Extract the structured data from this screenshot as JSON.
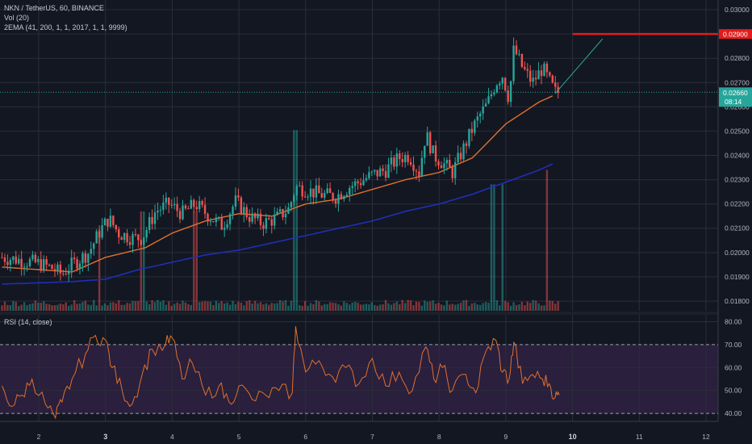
{
  "legend": {
    "symbol": "NKN / TetherUS, 60, BINANCE",
    "volume": "Vol (20)",
    "ema": "2EMA (41, 200, 1, 1, 2017, 1, 1, 9999)",
    "rsi": "RSI (14, close)"
  },
  "price_axis_labels": [
    "0.03000",
    "0.02900",
    "0.02800",
    "0.02700",
    "0.02600",
    "0.02500",
    "0.02400",
    "0.02300",
    "0.02200",
    "0.02100",
    "0.02000",
    "0.01900",
    "0.01800"
  ],
  "rsi_axis_labels": [
    "80.00",
    "70.00",
    "60.00",
    "50.00",
    "40.00"
  ],
  "badges": {
    "target_price": "0.02900",
    "last_price": "0.02660",
    "countdown": "08:14",
    "support_price": "0.02600"
  },
  "colors": {
    "background": "#131722",
    "up": "#26a69a",
    "down": "#ef5350",
    "ema_fast": "#e0702c",
    "ema_slow": "#1f2fb8",
    "rsi_line": "#e0702c",
    "rsi_band": "#2a1f3d",
    "target_line": "#e31b1b",
    "last_price_line": "#26a69a"
  },
  "chart_data": [
    {
      "type": "candlestick",
      "title": "NKN / TetherUS, 60, BINANCE",
      "x_unit": "day of month",
      "x_ticks": [
        2,
        3,
        4,
        5,
        6,
        7,
        8,
        9,
        10,
        11,
        12
      ],
      "x_tick_labels": [
        "2",
        "3",
        "4",
        "5",
        "6",
        "7",
        "8",
        "9",
        "10",
        "11",
        "12"
      ],
      "bold_x_ticks": [
        "3",
        "10"
      ],
      "ylim": [
        0.0176,
        0.0304
      ],
      "x_start": 1.45,
      "bar_hours": 1,
      "bars_count": 201,
      "price_keypoints": [
        [
          1.45,
          0.0198
        ],
        [
          1.7,
          0.0197
        ],
        [
          2.0,
          0.01955
        ],
        [
          2.2,
          0.01935
        ],
        [
          2.35,
          0.0191
        ],
        [
          2.45,
          0.0194
        ],
        [
          2.6,
          0.0197
        ],
        [
          2.75,
          0.02
        ],
        [
          2.92,
          0.0209
        ],
        [
          3.05,
          0.0214
        ],
        [
          3.2,
          0.0208
        ],
        [
          3.4,
          0.0206
        ],
        [
          3.55,
          0.0206
        ],
        [
          3.75,
          0.0217
        ],
        [
          3.95,
          0.022
        ],
        [
          4.15,
          0.0216
        ],
        [
          4.35,
          0.022
        ],
        [
          4.55,
          0.0215
        ],
        [
          4.75,
          0.0211
        ],
        [
          4.95,
          0.0221
        ],
        [
          5.15,
          0.0215
        ],
        [
          5.35,
          0.0212
        ],
        [
          5.55,
          0.0214
        ],
        [
          5.75,
          0.0218
        ],
        [
          5.85,
          0.0227
        ],
        [
          6.0,
          0.0226
        ],
        [
          6.2,
          0.0224
        ],
        [
          6.45,
          0.0223
        ],
        [
          6.65,
          0.0227
        ],
        [
          6.8,
          0.0229
        ],
        [
          7.0,
          0.0232
        ],
        [
          7.2,
          0.0234
        ],
        [
          7.4,
          0.0239
        ],
        [
          7.55,
          0.024
        ],
        [
          7.7,
          0.0233
        ],
        [
          7.8,
          0.0249
        ],
        [
          7.92,
          0.024
        ],
        [
          8.05,
          0.0237
        ],
        [
          8.2,
          0.0233
        ],
        [
          8.35,
          0.0242
        ],
        [
          8.5,
          0.0251
        ],
        [
          8.62,
          0.0257
        ],
        [
          8.72,
          0.0261
        ],
        [
          8.85,
          0.027
        ],
        [
          8.95,
          0.0273
        ],
        [
          9.05,
          0.0263
        ],
        [
          9.12,
          0.0284
        ],
        [
          9.25,
          0.0276
        ],
        [
          9.4,
          0.027
        ],
        [
          9.55,
          0.0276
        ],
        [
          9.68,
          0.0269
        ],
        [
          9.74,
          0.0266
        ]
      ],
      "target_price": 0.029,
      "last_price": 0.0266,
      "projection": {
        "x": [
          9.74,
          10.45
        ],
        "y": [
          0.02655,
          0.0288
        ]
      },
      "ema_fast_keypoints": [
        [
          1.45,
          0.0194
        ],
        [
          2.5,
          0.0192
        ],
        [
          3.0,
          0.0198
        ],
        [
          3.6,
          0.0202
        ],
        [
          4.0,
          0.0208
        ],
        [
          4.5,
          0.0213
        ],
        [
          5.0,
          0.0216
        ],
        [
          5.5,
          0.0215
        ],
        [
          6.0,
          0.022
        ],
        [
          6.5,
          0.0222
        ],
        [
          7.0,
          0.0226
        ],
        [
          7.5,
          0.023
        ],
        [
          8.0,
          0.0233
        ],
        [
          8.5,
          0.0239
        ],
        [
          9.0,
          0.0253
        ],
        [
          9.5,
          0.0262
        ],
        [
          9.74,
          0.0265
        ]
      ],
      "ema_slow_keypoints": [
        [
          1.45,
          0.0187
        ],
        [
          2.5,
          0.0188
        ],
        [
          3.0,
          0.0189
        ],
        [
          3.5,
          0.0193
        ],
        [
          4.0,
          0.0196
        ],
        [
          4.5,
          0.0199
        ],
        [
          5.0,
          0.0201
        ],
        [
          5.5,
          0.0204
        ],
        [
          6.0,
          0.0207
        ],
        [
          6.5,
          0.021
        ],
        [
          7.0,
          0.0213
        ],
        [
          7.5,
          0.0217
        ],
        [
          8.0,
          0.022
        ],
        [
          8.5,
          0.0224
        ],
        [
          9.0,
          0.0229
        ],
        [
          9.5,
          0.0234
        ],
        [
          9.74,
          0.0237
        ]
      ],
      "volume_spikes": [
        [
          2.92,
          0.45
        ],
        [
          3.55,
          0.55
        ],
        [
          4.35,
          0.55
        ],
        [
          5.85,
          1.0
        ],
        [
          8.8,
          0.7
        ],
        [
          8.95,
          0.7
        ],
        [
          9.62,
          0.78
        ]
      ],
      "volume_max_price_equiv": 0.012
    },
    {
      "type": "line",
      "title": "RSI (14, close)",
      "ylim": [
        36.5,
        83
      ],
      "bands": [
        40,
        70
      ],
      "x": [
        1.45,
        1.6,
        1.75,
        1.9,
        2.1,
        2.25,
        2.35,
        2.5,
        2.7,
        2.85,
        3.0,
        3.1,
        3.25,
        3.4,
        3.55,
        3.7,
        3.9,
        4.0,
        4.15,
        4.3,
        4.5,
        4.7,
        4.85,
        5.0,
        5.2,
        5.4,
        5.6,
        5.8,
        5.85,
        6.0,
        6.2,
        6.4,
        6.6,
        6.8,
        7.0,
        7.2,
        7.4,
        7.6,
        7.8,
        7.92,
        8.05,
        8.2,
        8.4,
        8.55,
        8.7,
        8.85,
        8.95,
        9.05,
        9.12,
        9.25,
        9.4,
        9.55,
        9.65,
        9.74,
        9.8
      ],
      "y": [
        52,
        43,
        48,
        55,
        44,
        38,
        45,
        55,
        66,
        74,
        72,
        60,
        50,
        44,
        57,
        68,
        70,
        73,
        55,
        62,
        48,
        52,
        45,
        52,
        46,
        48,
        50,
        49,
        78,
        58,
        63,
        56,
        60,
        53,
        64,
        52,
        58,
        50,
        69,
        55,
        60,
        50,
        57,
        49,
        67,
        72,
        58,
        55,
        71,
        53,
        57,
        55,
        53,
        47,
        48
      ]
    }
  ]
}
